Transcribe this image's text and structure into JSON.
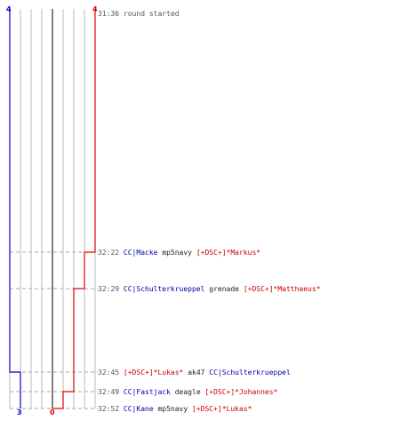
{
  "colors": {
    "blue": "#0000cc",
    "red": "#e00000",
    "grid": "#bbbbbb",
    "center": "#555555",
    "dash": "#aaaaaa",
    "text": "#555555"
  },
  "scoreboard": {
    "blue_start": "4",
    "red_start": "4",
    "blue_end": "3",
    "red_end": "0"
  },
  "start_event": {
    "time": "31:36",
    "text": "round started"
  },
  "events": [
    {
      "time": "32:22",
      "killer": "CC|Macke",
      "killer_team": "blue",
      "weapon": "mp5navy",
      "victim": "[+DSC+]*Markus*",
      "victim_team": "red"
    },
    {
      "time": "32:29",
      "killer": "CC|Schulterkrueppel",
      "killer_team": "blue",
      "weapon": "grenade",
      "victim": "[+DSC+]*Matthaeus*",
      "victim_team": "red"
    },
    {
      "time": "32:45",
      "killer": "[+DSC+]*Lukas*",
      "killer_team": "red",
      "weapon": "ak47",
      "victim": "CC|Schulterkrueppel",
      "victim_team": "blue"
    },
    {
      "time": "32:49",
      "killer": "CC|Fastjack",
      "killer_team": "blue",
      "weapon": "deagle",
      "victim": "[+DSC+]*Johannes*",
      "victim_team": "red"
    },
    {
      "time": "32:52",
      "killer": "CC|Kane",
      "killer_team": "blue",
      "weapon": "mp5navy",
      "victim": "[+DSC+]*Lukas*",
      "victim_team": "red"
    }
  ]
}
